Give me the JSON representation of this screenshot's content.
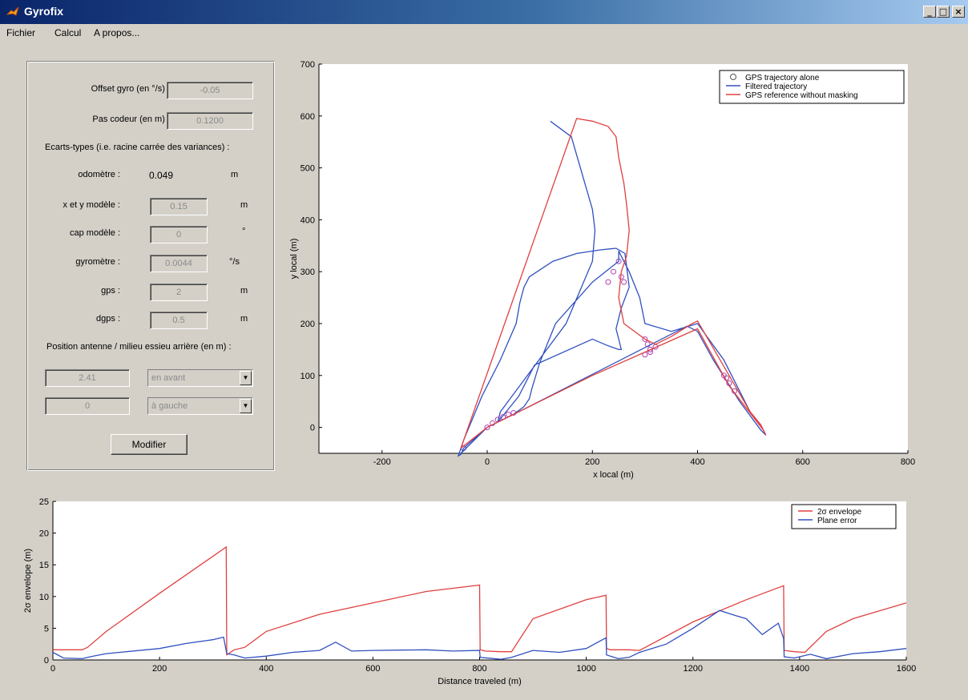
{
  "window": {
    "title": "Gyrofix"
  },
  "menu": {
    "items": [
      "Fichier",
      "Calcul",
      "A propos..."
    ]
  },
  "params": {
    "offset_label": "Offset gyro (en °/s) :",
    "offset_value": "-0.05",
    "pas_label": "Pas codeur (en m) :",
    "pas_value": "0.1200",
    "ecarts_label": "Ecarts-types (i.e. racine carrée des variances) :",
    "rows": [
      {
        "label": "odomètre :",
        "value": "0.049",
        "unit": "m",
        "editable": false
      },
      {
        "label": "x et y modèle :",
        "value": "0.15",
        "unit": "m",
        "editable": true
      },
      {
        "label": "cap modèle :",
        "value": "0",
        "unit": "°",
        "editable": true
      },
      {
        "label": "gyromètre :",
        "value": "0.0044",
        "unit": "°/s",
        "editable": true
      },
      {
        "label": "gps :",
        "value": "2",
        "unit": "m",
        "editable": true
      },
      {
        "label": "dgps :",
        "value": "0.5",
        "unit": "m",
        "editable": true
      }
    ],
    "position_label": "Position antenne / milieu essieu arrière (en m) :",
    "pos_rows": [
      {
        "value": "2.41",
        "select": "en avant"
      },
      {
        "value": "0",
        "select": "à gauche"
      }
    ],
    "modify_label": "Modifier"
  },
  "chart_data": [
    {
      "type": "line",
      "xlabel": "x local (m)",
      "ylabel": "y local (m)",
      "xlim": [
        -320,
        800
      ],
      "ylim": [
        -50,
        700
      ],
      "xticks": [
        -200,
        0,
        200,
        400,
        600,
        800
      ],
      "yticks": [
        0,
        100,
        200,
        300,
        400,
        500,
        600,
        700
      ],
      "legend_position": "top-right",
      "series": [
        {
          "name": "GPS trajectory alone",
          "color": "#b040b0",
          "style": "markers",
          "x": [
            0,
            10,
            20,
            30,
            40,
            50,
            230,
            240,
            250,
            255,
            260,
            300,
            305,
            310,
            320,
            300,
            310,
            450,
            455,
            460,
            470,
            -45
          ],
          "y": [
            0,
            8,
            15,
            20,
            25,
            28,
            280,
            300,
            320,
            290,
            280,
            170,
            160,
            150,
            155,
            140,
            145,
            100,
            95,
            85,
            70,
            -40
          ]
        },
        {
          "name": "Filtered trajectory",
          "color": "#3050c0",
          "style": "line",
          "x": [
            -50,
            0,
            50,
            70,
            80,
            85,
            100,
            130,
            200,
            250,
            250,
            255,
            270,
            290,
            300,
            350,
            400,
            450,
            500,
            520,
            530,
            520,
            480,
            430,
            400,
            380,
            60,
            30,
            0,
            -45,
            -50,
            -55,
            -45,
            -10,
            25,
            55,
            62,
            70,
            80,
            95,
            125,
            170,
            215,
            245,
            262,
            270,
            255,
            245,
            250,
            255,
            255,
            250,
            228,
            200,
            90,
            60,
            20,
            25,
            150,
            200,
            205,
            200,
            160,
            120
          ],
          "y": [
            -50,
            0,
            25,
            40,
            55,
            75,
            125,
            200,
            280,
            320,
            340,
            330,
            300,
            250,
            200,
            185,
            200,
            130,
            30,
            5,
            -15,
            -5,
            50,
            130,
            185,
            195,
            30,
            15,
            0,
            -40,
            -52,
            -55,
            -25,
            60,
            130,
            200,
            240,
            270,
            290,
            300,
            320,
            335,
            342,
            345,
            335,
            270,
            230,
            190,
            170,
            150,
            150,
            150,
            158,
            170,
            120,
            60,
            10,
            30,
            200,
            320,
            380,
            420,
            560,
            590
          ]
        },
        {
          "name": "GPS reference without masking",
          "color": "#e04040",
          "style": "line",
          "x": [
            -50,
            170,
            200,
            230,
            245,
            250,
            260,
            265,
            270,
            265,
            255,
            250,
            260,
            300,
            320,
            350,
            390,
            400,
            420,
            460,
            500,
            520,
            530,
            525,
            460,
            400,
            300,
            200,
            100,
            60,
            20,
            0,
            -50
          ],
          "y": [
            -40,
            595,
            590,
            580,
            560,
            520,
            470,
            430,
            380,
            330,
            300,
            250,
            200,
            170,
            160,
            175,
            200,
            205,
            170,
            100,
            30,
            5,
            -15,
            -5,
            80,
            190,
            145,
            100,
            50,
            30,
            10,
            0,
            -40
          ]
        }
      ]
    },
    {
      "type": "line",
      "xlabel": "Distance traveled (m)",
      "ylabel": "2σ envelope (m)",
      "xlim": [
        0,
        1600
      ],
      "ylim": [
        0,
        25
      ],
      "xticks": [
        0,
        200,
        400,
        600,
        800,
        1000,
        1200,
        1400,
        1600
      ],
      "yticks": [
        0,
        5,
        10,
        15,
        20,
        25
      ],
      "legend_position": "top-right",
      "series": [
        {
          "name": "2σ envelope",
          "color": "#e04040",
          "x": [
            0,
            55,
            65,
            100,
            200,
            325,
            326,
            340,
            360,
            400,
            500,
            600,
            700,
            800,
            801,
            810,
            840,
            860,
            900,
            1000,
            1037,
            1038,
            1045,
            1080,
            1100,
            1200,
            1300,
            1370,
            1371,
            1390,
            1410,
            1450,
            1500,
            1600
          ],
          "y": [
            1.6,
            1.6,
            2,
            4.5,
            10.5,
            17.8,
            0.8,
            1.6,
            2,
            4.5,
            7.2,
            9,
            10.8,
            11.8,
            1.6,
            1.4,
            1.3,
            1.3,
            6.5,
            9.5,
            10.2,
            1.8,
            1.6,
            1.6,
            1.5,
            6,
            9.5,
            11.7,
            1.5,
            1.3,
            1.2,
            4.5,
            6.5,
            9
          ]
        },
        {
          "name": "Plane error",
          "color": "#3050c0",
          "x": [
            0,
            20,
            55,
            70,
            100,
            200,
            250,
            300,
            320,
            326,
            340,
            360,
            400,
            450,
            500,
            530,
            560,
            600,
            700,
            750,
            800,
            801,
            840,
            860,
            900,
            950,
            1000,
            1037,
            1038,
            1060,
            1080,
            1100,
            1150,
            1200,
            1250,
            1280,
            1300,
            1330,
            1360,
            1370,
            1371,
            1390,
            1420,
            1450,
            1500,
            1550,
            1600
          ],
          "y": [
            1.2,
            0.3,
            0.2,
            0.5,
            1,
            1.8,
            2.6,
            3.2,
            3.6,
            1,
            0.8,
            0.3,
            0.6,
            1.2,
            1.5,
            2.8,
            1.4,
            1.5,
            1.6,
            1.4,
            1.5,
            0.4,
            0.1,
            0.4,
            1.5,
            1.2,
            1.8,
            3.5,
            0.8,
            0.2,
            0.4,
            1.2,
            2.5,
            5,
            7.8,
            7,
            6.5,
            4,
            5.8,
            3.4,
            0.5,
            0.3,
            0.9,
            0.2,
            1,
            1.3,
            1.8
          ]
        }
      ]
    }
  ]
}
